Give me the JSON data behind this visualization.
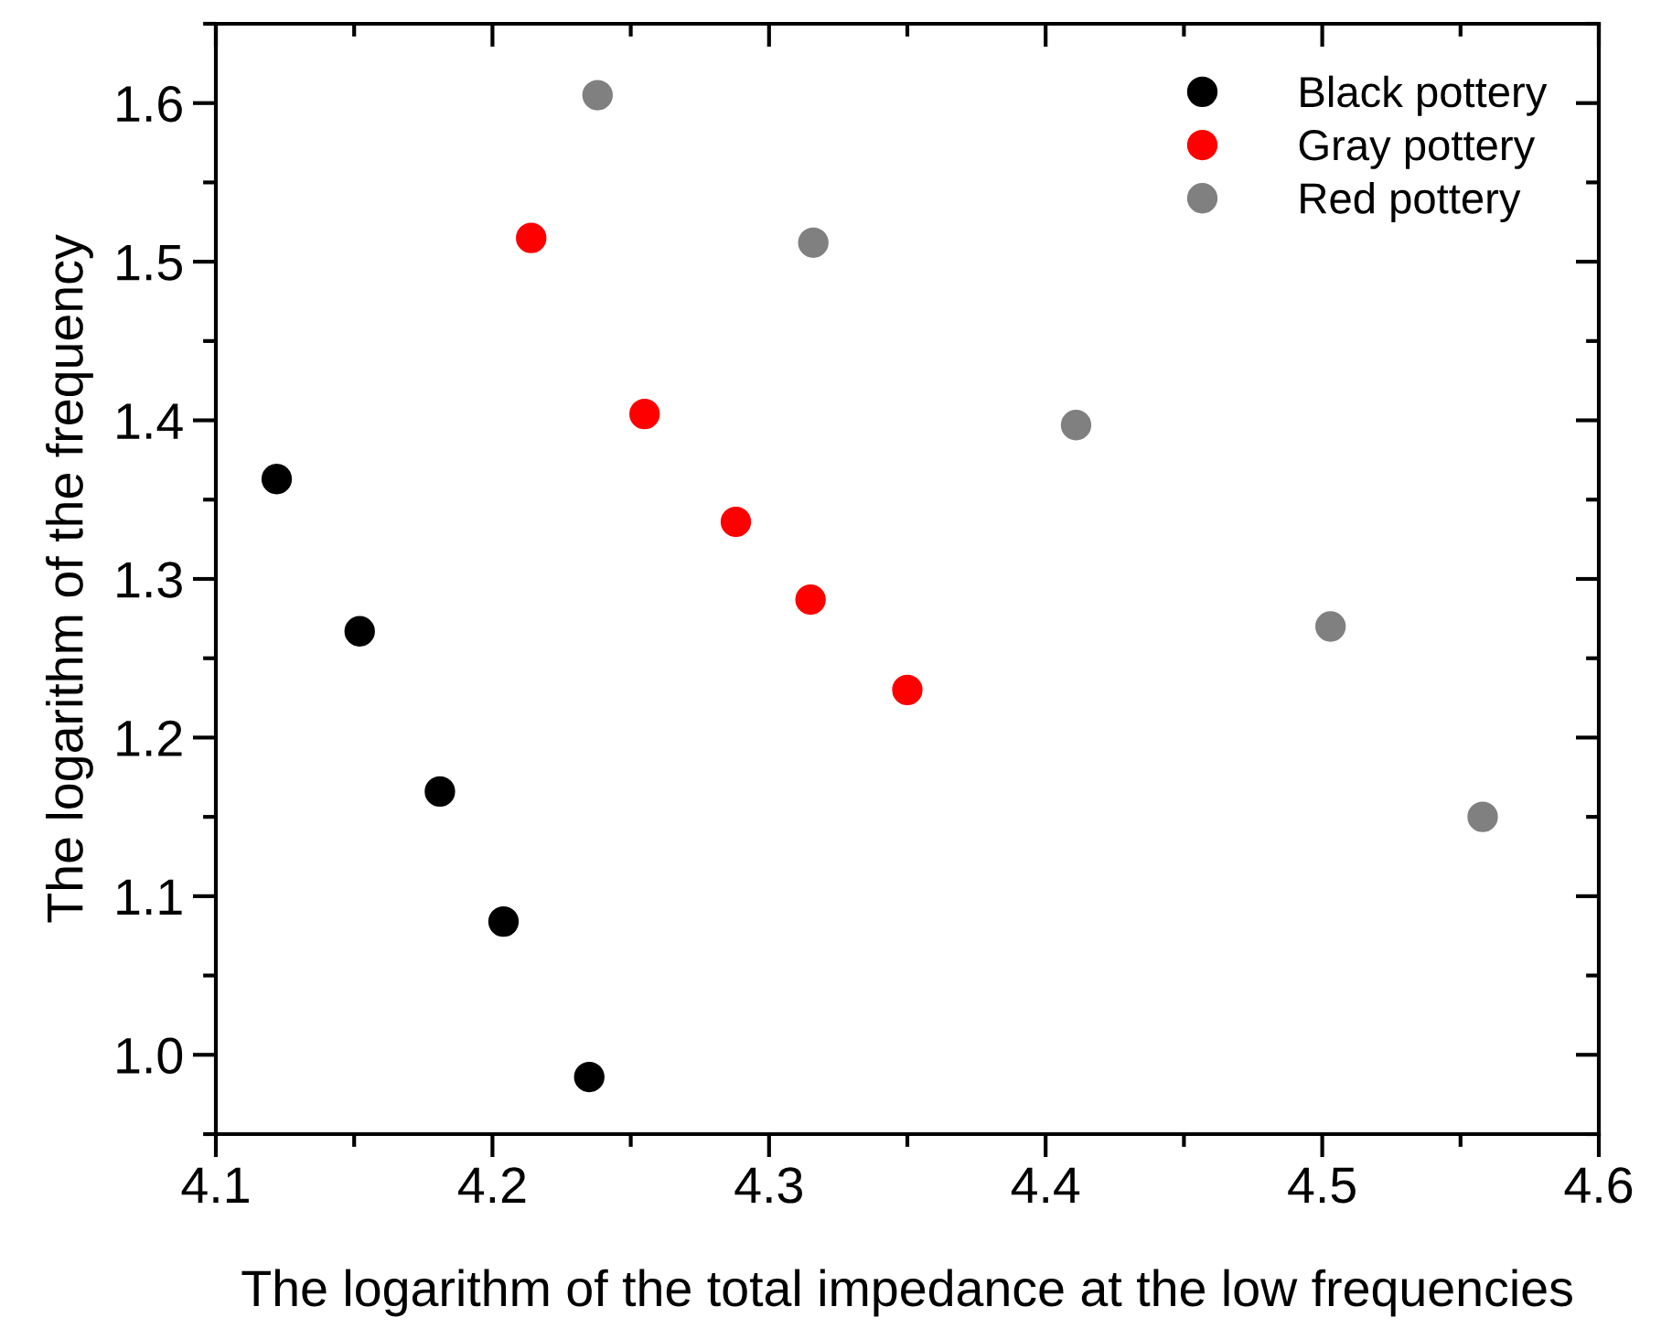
{
  "chart_data": {
    "type": "scatter",
    "xlabel": "The logarithm of the total impedance at the low frequencies",
    "ylabel": "The logarithm of the frequency",
    "series": [
      {
        "name": "Black pottery",
        "color": "#000000",
        "x": [
          4.122,
          4.152,
          4.181,
          4.204,
          4.235
        ],
        "values": [
          1.363,
          1.267,
          1.166,
          1.084,
          0.986
        ]
      },
      {
        "name": "Gray pottery",
        "color": "#ff0000",
        "x": [
          4.214,
          4.255,
          4.288,
          4.315,
          4.35
        ],
        "values": [
          1.515,
          1.404,
          1.336,
          1.287,
          1.23
        ]
      },
      {
        "name": "Red pottery",
        "color": "#808080",
        "x": [
          4.238,
          4.316,
          4.411,
          4.503,
          4.558
        ],
        "values": [
          1.605,
          1.512,
          1.397,
          1.27,
          1.15
        ]
      }
    ],
    "xlim": [
      4.1,
      4.6
    ],
    "xticks": [
      4.1,
      4.2,
      4.3,
      4.4,
      4.5,
      4.6
    ],
    "ylim": [
      0.95,
      1.65
    ],
    "yticks": [
      {
        "value": 1.0,
        "label": "1.0"
      },
      1.1,
      1.2,
      1.3,
      1.4,
      1.5,
      1.6
    ],
    "marker": "circle",
    "legend": "top right",
    "grid": false
  }
}
